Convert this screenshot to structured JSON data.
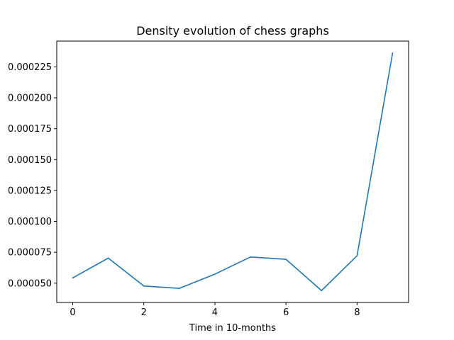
{
  "chart_data": {
    "type": "line",
    "title": "Density evolution of chess graphs",
    "xlabel": "Time in 10-months",
    "ylabel": "",
    "x": [
      0,
      1,
      2,
      3,
      4,
      5,
      6,
      7,
      8,
      9
    ],
    "series": [
      {
        "values": [
          5.43e-05,
          7.03e-05,
          4.77e-05,
          4.58e-05,
          5.73e-05,
          7.12e-05,
          6.93e-05,
          4.4e-05,
          7.22e-05,
          0.0002363
        ],
        "color": "#1f77b4"
      }
    ],
    "xlim": [
      -0.45,
      9.45
    ],
    "ylim": [
      3.44e-05,
      0.0002459
    ],
    "xticks": [
      0,
      2,
      4,
      6,
      8
    ],
    "xtick_labels": [
      "0",
      "2",
      "4",
      "6",
      "8"
    ],
    "yticks": [
      5e-05,
      7.5e-05,
      0.0001,
      0.000125,
      0.00015,
      0.000175,
      0.0002,
      0.000225
    ],
    "ytick_labels": [
      "0.000050",
      "0.000075",
      "0.000100",
      "0.000125",
      "0.000150",
      "0.000175",
      "0.000200",
      "0.000225"
    ],
    "grid": false,
    "legend": "none"
  }
}
